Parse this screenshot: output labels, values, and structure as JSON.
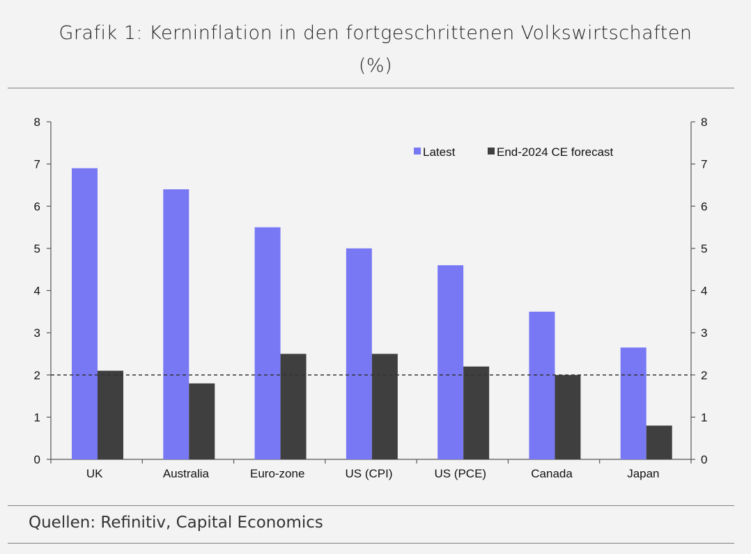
{
  "title_line1": "Grafik 1: Kerninflation in den fortgeschrittenen Volkswirtschaften",
  "title_line2": "(%)",
  "source": "Quellen: Refinitiv, Capital Economics",
  "colors": {
    "latest": "#7878f5",
    "forecast": "#3f3f3f",
    "reference": "#333333"
  },
  "chart_data": {
    "type": "bar",
    "categories": [
      "UK",
      "Australia",
      "Euro-zone",
      "US (CPI)",
      "US (PCE)",
      "Canada",
      "Japan"
    ],
    "series": [
      {
        "name": "Latest",
        "values": [
          6.9,
          6.4,
          5.5,
          5.0,
          4.6,
          3.5,
          2.65
        ]
      },
      {
        "name": "End-2024 CE forecast",
        "values": [
          2.1,
          1.8,
          2.5,
          2.5,
          2.2,
          2.0,
          0.8
        ]
      }
    ],
    "ylim": [
      0,
      8
    ],
    "yticks": [
      0,
      1,
      2,
      3,
      4,
      5,
      6,
      7,
      8
    ],
    "reference_line": 2,
    "legend_position": "top-right",
    "grid": false,
    "xlabel": "",
    "ylabel": ""
  }
}
